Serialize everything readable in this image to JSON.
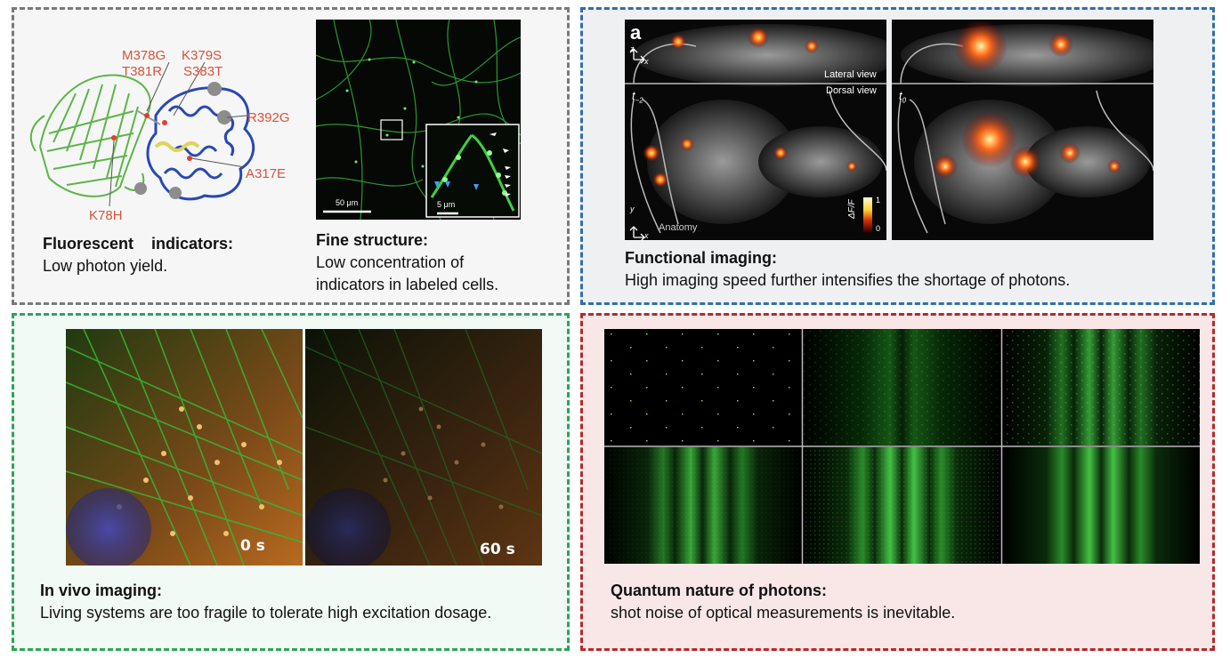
{
  "panels": {
    "fluorescent": {
      "title": "Fluorescent    indicators:",
      "text": "Low photon yield.",
      "mutations": [
        "M378G",
        "T381R",
        "K379S",
        "S383T",
        "R392G",
        "A317E",
        "K78H"
      ]
    },
    "fine_structure": {
      "title": "Fine structure:",
      "text_line1": "Low concentration of",
      "text_line2": "indicators in labeled cells.",
      "scale_main": "50 μm",
      "scale_inset": "5 μm"
    },
    "functional": {
      "title": "Functional imaging:",
      "text": "High imaging speed further intensifies the shortage of photons.",
      "panel_letter": "a",
      "lateral_view": "Lateral view",
      "dorsal_view": "Dorsal view",
      "t_minus": "t",
      "t_minus_sub": "−2",
      "t_zero": "t",
      "t_zero_sub": "0",
      "anatomy": "Anatomy",
      "colorbar_label": "ΔF/F",
      "colorbar_max": "1",
      "colorbar_min": "0",
      "axis_z": "z",
      "axis_x": "x",
      "axis_y": "y"
    },
    "in_vivo": {
      "title": "In vivo imaging:",
      "text": "Living systems are too fragile to tolerate high excitation dosage.",
      "time_start": "0 s",
      "time_end": "60 s"
    },
    "quantum": {
      "title": "Quantum nature of photons:",
      "text": "shot noise of optical measurements is inevitable."
    }
  },
  "colors": {
    "gray_border": "#7a7a7a",
    "blue_border": "#2f6fb0",
    "green_border": "#2fa457",
    "red_border": "#b52a2a",
    "mutation_label": "#d9523a"
  }
}
